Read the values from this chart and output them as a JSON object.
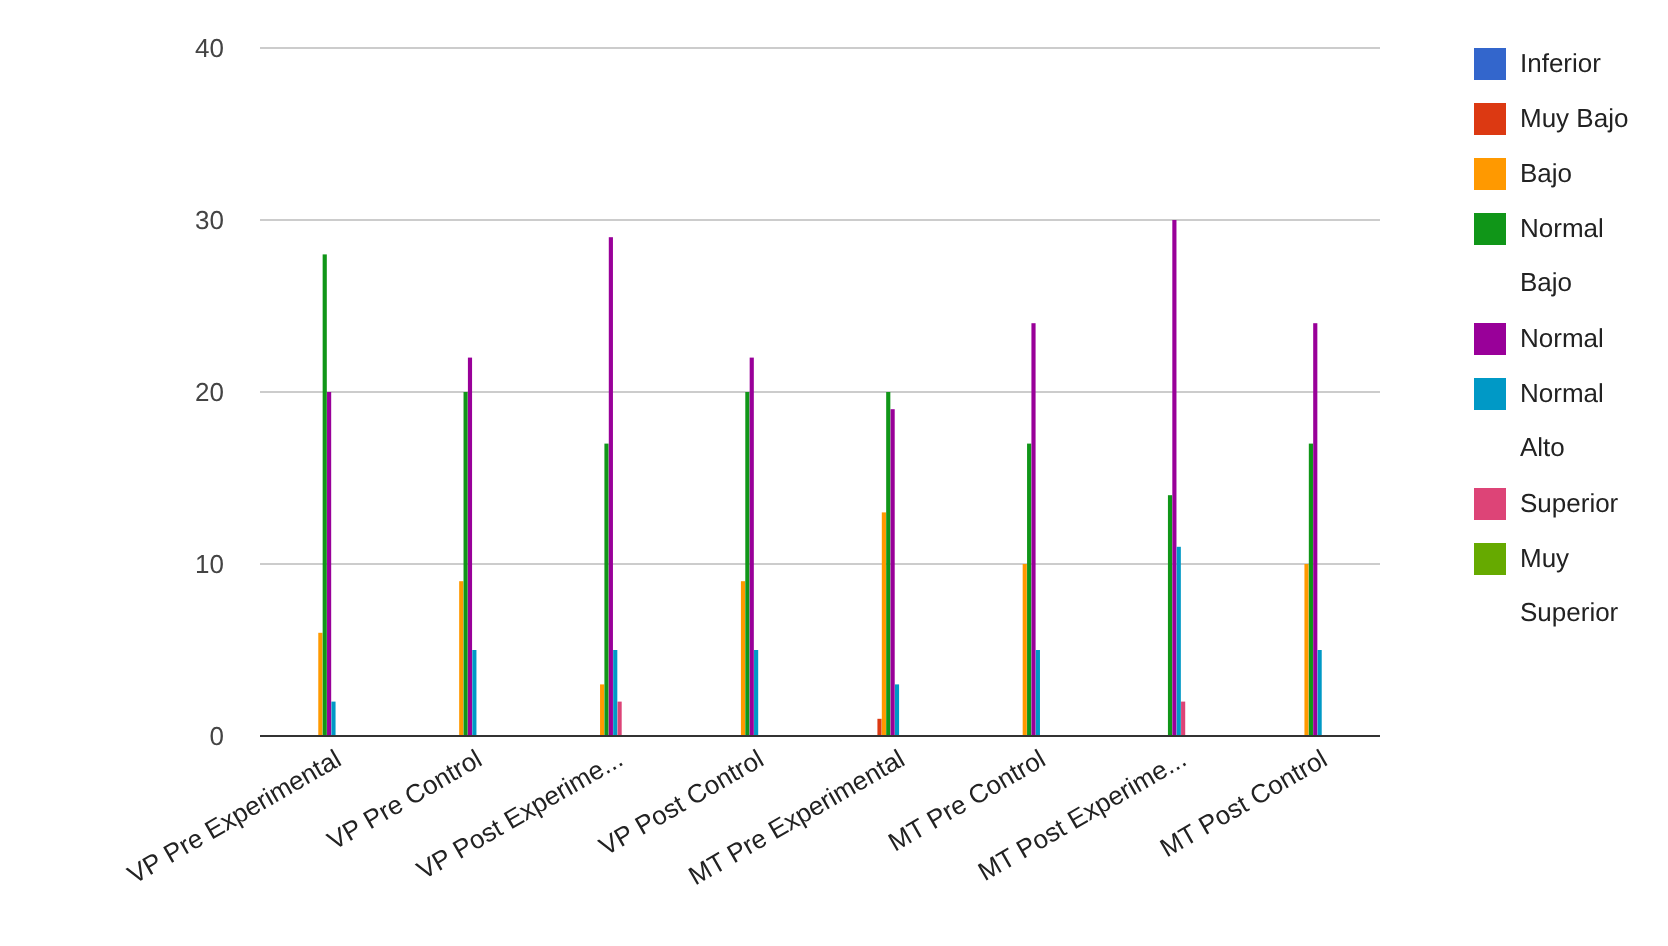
{
  "chart_data": {
    "type": "bar",
    "categories": [
      "VP Pre Experimental",
      "VP Pre Control",
      "VP Post Experime...",
      "VP Post Control",
      "MT Pre Experimental",
      "MT Pre Control",
      "MT Post Experime...",
      "MT Post Control"
    ],
    "series": [
      {
        "name": "Inferior",
        "color": "#3366cc",
        "values": [
          0,
          0,
          0,
          0,
          0,
          0,
          0,
          0
        ]
      },
      {
        "name": "Muy Bajo",
        "color": "#dc3912",
        "values": [
          0,
          0,
          0,
          0,
          1,
          0,
          0,
          0
        ]
      },
      {
        "name": "Bajo",
        "color": "#ff9900",
        "values": [
          6,
          9,
          3,
          9,
          13,
          10,
          0,
          10
        ]
      },
      {
        "name": "Normal Bajo",
        "color": "#109618",
        "values": [
          28,
          20,
          17,
          20,
          20,
          17,
          14,
          17
        ]
      },
      {
        "name": "Normal",
        "color": "#990099",
        "values": [
          20,
          22,
          29,
          22,
          19,
          24,
          30,
          24
        ]
      },
      {
        "name": "Normal Alto",
        "color": "#0099c6",
        "values": [
          2,
          5,
          5,
          5,
          3,
          5,
          11,
          5
        ]
      },
      {
        "name": "Superior",
        "color": "#dd4477",
        "values": [
          0,
          0,
          2,
          0,
          0,
          0,
          2,
          0
        ]
      },
      {
        "name": "Muy Superior",
        "color": "#66aa00",
        "values": [
          0,
          0,
          0,
          0,
          0,
          0,
          0,
          0
        ]
      }
    ],
    "ylim": [
      0,
      40
    ],
    "yticks": [
      0,
      10,
      20,
      30,
      40
    ],
    "grid": "y",
    "legend": "right"
  }
}
